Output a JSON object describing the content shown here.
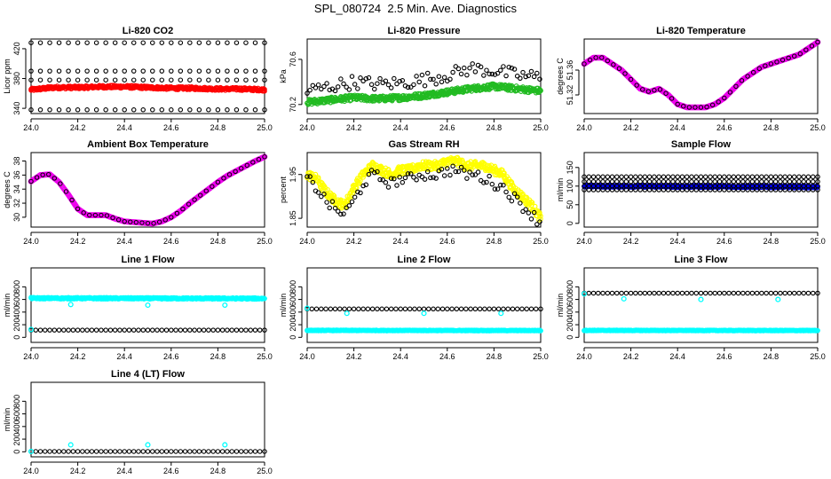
{
  "page_title": "SPL_080724  2.5 Min. Ave. Diagnostics",
  "colors": {
    "red": "#ff0000",
    "green": "#22bb22",
    "magenta": "#ee00ee",
    "yellow": "#ffff00",
    "blue": "#0000ee",
    "cyan": "#00ffff",
    "black": "#000000"
  },
  "chart_data": [
    {
      "type": "scatter",
      "title": "Li-820 CO2",
      "xlabel": "",
      "ylabel": "Licor ppm",
      "xlim": [
        24.0,
        25.0
      ],
      "ylim": [
        333,
        433
      ],
      "xticks": [
        24.0,
        24.2,
        24.4,
        24.6,
        24.8,
        25.0
      ],
      "yticks": [
        340,
        380,
        420
      ],
      "series": [
        {
          "color": "red",
          "style": "band",
          "x": [
            24.0,
            24.1,
            24.2,
            24.3,
            24.4,
            24.5,
            24.6,
            24.7,
            24.8,
            24.9,
            25.0
          ],
          "y": [
            365,
            368,
            368,
            369,
            369,
            368,
            367,
            367,
            366,
            366,
            365
          ],
          "spread": 4
        },
        {
          "color": "black",
          "style": "rows",
          "x": [
            24.0,
            25.0
          ],
          "rows": [
            428,
            390,
            378,
            338
          ],
          "step": 0.04
        }
      ]
    },
    {
      "type": "scatter",
      "title": "Li-820 Pressure",
      "xlabel": "",
      "ylabel": "kPa",
      "xlim": [
        24.0,
        25.0
      ],
      "ylim": [
        70.12,
        70.78
      ],
      "xticks": [
        24.0,
        24.2,
        24.4,
        24.6,
        24.8,
        25.0
      ],
      "yticks": [
        70.2,
        70.6
      ],
      "series": [
        {
          "color": "green",
          "style": "band",
          "x": [
            24.0,
            24.1,
            24.2,
            24.3,
            24.4,
            24.5,
            24.6,
            24.7,
            24.8,
            24.9,
            25.0
          ],
          "y": [
            70.22,
            70.24,
            70.26,
            70.25,
            70.26,
            70.28,
            70.31,
            70.34,
            70.36,
            70.34,
            70.32
          ],
          "spread": 0.05
        },
        {
          "color": "black",
          "style": "cloud",
          "x": [
            24.0,
            24.1,
            24.2,
            24.3,
            24.4,
            24.5,
            24.6,
            24.7,
            24.8,
            24.9,
            25.0
          ],
          "y": [
            70.32,
            70.36,
            70.4,
            70.38,
            70.39,
            70.42,
            70.46,
            70.52,
            70.5,
            70.46,
            70.44
          ],
          "spread": 0.12
        }
      ]
    },
    {
      "type": "line",
      "title": "Li-820 Temperature",
      "xlabel": "",
      "ylabel": "degrees C",
      "xlim": [
        24.0,
        25.0
      ],
      "ylim": [
        51.29,
        51.41
      ],
      "xticks": [
        24.0,
        24.2,
        24.4,
        24.6,
        24.8,
        25.0
      ],
      "yticks": [
        51.32,
        51.36
      ],
      "series": [
        {
          "color": "magenta",
          "style": "thick",
          "x": [
            24.0,
            24.04,
            24.08,
            24.12,
            24.16,
            24.2,
            24.24,
            24.28,
            24.32,
            24.36,
            24.4,
            24.44,
            24.48,
            24.52,
            24.56,
            24.6,
            24.64,
            24.68,
            24.72,
            24.76,
            24.8,
            24.84,
            24.88,
            24.92,
            24.96,
            25.0
          ],
          "y": [
            51.37,
            51.38,
            51.38,
            51.37,
            51.36,
            51.345,
            51.33,
            51.325,
            51.33,
            51.32,
            51.305,
            51.3,
            51.3,
            51.3,
            51.305,
            51.315,
            51.33,
            51.345,
            51.355,
            51.365,
            51.37,
            51.375,
            51.38,
            51.385,
            51.395,
            51.405
          ]
        }
      ]
    },
    {
      "type": "line",
      "title": "Ambient Box Temperature",
      "xlabel": "",
      "ylabel": "degrees C",
      "xlim": [
        24.0,
        25.0
      ],
      "ylim": [
        28.6,
        39.2
      ],
      "xticks": [
        24.0,
        24.2,
        24.4,
        24.6,
        24.8,
        25.0
      ],
      "yticks": [
        30,
        32,
        34,
        36,
        38
      ],
      "series": [
        {
          "color": "magenta",
          "style": "thick",
          "x": [
            24.0,
            24.04,
            24.08,
            24.12,
            24.16,
            24.2,
            24.24,
            24.28,
            24.32,
            24.36,
            24.4,
            24.44,
            24.48,
            24.52,
            24.56,
            24.6,
            24.64,
            24.68,
            24.72,
            24.76,
            24.8,
            24.84,
            24.88,
            24.92,
            24.96,
            25.0
          ],
          "y": [
            35.1,
            36.0,
            36.1,
            35.0,
            33.2,
            31.2,
            30.3,
            30.3,
            30.3,
            29.8,
            29.4,
            29.3,
            29.2,
            29.1,
            29.4,
            30.0,
            30.9,
            32.0,
            33.0,
            34.0,
            35.0,
            35.9,
            36.6,
            37.3,
            38.0,
            38.6
          ]
        }
      ]
    },
    {
      "type": "scatter",
      "title": "Gas Stream RH",
      "xlabel": "",
      "ylabel": "percent",
      "xlim": [
        24.0,
        25.0
      ],
      "ylim": [
        1.83,
        2.0
      ],
      "xticks": [
        24.0,
        24.2,
        24.4,
        24.6,
        24.8,
        25.0
      ],
      "yticks": [
        1.85,
        1.95
      ],
      "series": [
        {
          "color": "yellow",
          "style": "band",
          "x": [
            24.0,
            24.04,
            24.08,
            24.12,
            24.16,
            24.2,
            24.24,
            24.28,
            24.32,
            24.36,
            24.4,
            24.44,
            24.48,
            24.52,
            24.56,
            24.6,
            24.64,
            24.68,
            24.72,
            24.76,
            24.8,
            24.84,
            24.88,
            24.92,
            24.96,
            25.0
          ],
          "y": [
            1.95,
            1.94,
            1.91,
            1.89,
            1.88,
            1.92,
            1.95,
            1.97,
            1.96,
            1.95,
            1.96,
            1.96,
            1.97,
            1.97,
            1.97,
            1.98,
            1.98,
            1.97,
            1.97,
            1.97,
            1.96,
            1.95,
            1.92,
            1.9,
            1.88,
            1.85
          ],
          "spread": 0.02
        },
        {
          "color": "black",
          "style": "cloud",
          "x": [
            24.0,
            24.04,
            24.08,
            24.12,
            24.16,
            24.2,
            24.24,
            24.28,
            24.32,
            24.36,
            24.4,
            24.44,
            24.48,
            24.52,
            24.56,
            24.6,
            24.64,
            24.68,
            24.72,
            24.76,
            24.8,
            24.84,
            24.88,
            24.92,
            24.96,
            25.0
          ],
          "y": [
            1.94,
            1.92,
            1.89,
            1.87,
            1.86,
            1.89,
            1.93,
            1.95,
            1.94,
            1.93,
            1.94,
            1.94,
            1.95,
            1.95,
            1.95,
            1.96,
            1.96,
            1.95,
            1.95,
            1.94,
            1.93,
            1.92,
            1.9,
            1.88,
            1.86,
            1.84
          ],
          "spread": 0.025
        }
      ]
    },
    {
      "type": "scatter",
      "title": "Sample Flow",
      "xlabel": "",
      "ylabel": "ml/min",
      "xlim": [
        24.0,
        25.0
      ],
      "ylim": [
        -10,
        190
      ],
      "xticks": [
        24.0,
        24.2,
        24.4,
        24.6,
        24.8,
        25.0
      ],
      "yticks": [
        0,
        50,
        100,
        150
      ],
      "series": [
        {
          "color": "blue",
          "style": "band",
          "x": [
            24.0,
            25.0
          ],
          "y": [
            100,
            98
          ],
          "spread": 6
        },
        {
          "color": "black",
          "style": "rows",
          "x": [
            24.0,
            25.0
          ],
          "rows": [
            125,
            112,
            100,
            90
          ],
          "step": 0.02
        }
      ]
    },
    {
      "type": "scatter",
      "title": "Line 1 Flow",
      "xlabel": "",
      "ylabel": "ml/min",
      "xlim": [
        24.0,
        25.0
      ],
      "ylim": [
        -80,
        1100
      ],
      "xticks": [
        24.0,
        24.2,
        24.4,
        24.6,
        24.8,
        25.0
      ],
      "yticks": [
        0,
        200,
        400,
        600,
        800
      ],
      "series": [
        {
          "color": "cyan",
          "style": "band",
          "x": [
            24.0,
            25.0
          ],
          "y": [
            620,
            615
          ],
          "spread": 25
        },
        {
          "color": "black",
          "style": "rows",
          "x": [
            24.0,
            25.0
          ],
          "rows": [
            115
          ],
          "step": 0.02
        },
        {
          "color": "cyan",
          "style": "points",
          "x": [
            24.0,
            24.17,
            24.5,
            24.83
          ],
          "y": [
            125,
            520,
            510,
            510
          ]
        }
      ]
    },
    {
      "type": "scatter",
      "title": "Line 2 Flow",
      "xlabel": "",
      "ylabel": "ml/min",
      "xlim": [
        24.0,
        25.0
      ],
      "ylim": [
        -80,
        1100
      ],
      "xticks": [
        24.0,
        24.2,
        24.4,
        24.6,
        24.8,
        25.0
      ],
      "yticks": [
        0,
        200,
        400,
        600,
        800
      ],
      "series": [
        {
          "color": "cyan",
          "style": "band",
          "x": [
            24.0,
            25.0
          ],
          "y": [
            110,
            108
          ],
          "spread": 12
        },
        {
          "color": "black",
          "style": "rows",
          "x": [
            24.0,
            25.0
          ],
          "rows": [
            450
          ],
          "step": 0.02
        },
        {
          "color": "cyan",
          "style": "points",
          "x": [
            24.0,
            24.17,
            24.5,
            24.83
          ],
          "y": [
            460,
            380,
            380,
            380
          ]
        }
      ]
    },
    {
      "type": "scatter",
      "title": "Line 3 Flow",
      "xlabel": "",
      "ylabel": "ml/min",
      "xlim": [
        24.0,
        25.0
      ],
      "ylim": [
        -80,
        1100
      ],
      "xticks": [
        24.0,
        24.2,
        24.4,
        24.6,
        24.8,
        25.0
      ],
      "yticks": [
        0,
        200,
        400,
        600,
        800
      ],
      "series": [
        {
          "color": "cyan",
          "style": "band",
          "x": [
            24.0,
            25.0
          ],
          "y": [
            110,
            108
          ],
          "spread": 12
        },
        {
          "color": "black",
          "style": "rows",
          "x": [
            24.0,
            25.0
          ],
          "rows": [
            700
          ],
          "step": 0.02
        },
        {
          "color": "cyan",
          "style": "points",
          "x": [
            24.0,
            24.17,
            24.5,
            24.83
          ],
          "y": [
            690,
            610,
            600,
            600
          ]
        }
      ]
    },
    {
      "type": "scatter",
      "title": "Line 4 (LT) Flow",
      "xlabel": "",
      "ylabel": "ml/min",
      "xlim": [
        24.0,
        25.0
      ],
      "ylim": [
        -80,
        1100
      ],
      "xticks": [
        24.0,
        24.2,
        24.4,
        24.6,
        24.8,
        25.0
      ],
      "yticks": [
        0,
        200,
        400,
        600,
        800
      ],
      "series": [
        {
          "color": "black",
          "style": "rows",
          "x": [
            24.0,
            25.0
          ],
          "rows": [
            5
          ],
          "step": 0.02
        },
        {
          "color": "cyan",
          "style": "points",
          "x": [
            24.0,
            24.17,
            24.5,
            24.83
          ],
          "y": [
            5,
            110,
            110,
            110
          ]
        }
      ]
    }
  ]
}
